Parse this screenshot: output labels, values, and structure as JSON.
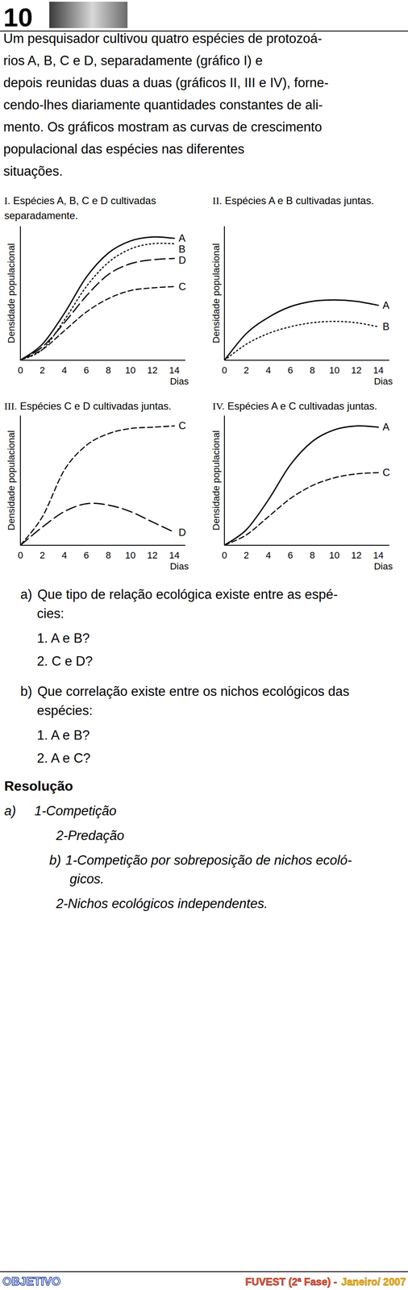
{
  "header": {
    "number": "10"
  },
  "question": {
    "lines": [
      "Um pesquisador cultivou quatro espécies de protozoá-",
      "rios A, B, C e D, separadamente (gráfico I) e",
      "depois reunidas duas a duas (gráficos II, III e IV), forne-",
      "cendo-lhes diariamente quantidades constantes de ali-",
      "mento. Os gráficos mostram as curvas de crescimento",
      "populacional das espécies nas diferentes",
      "situações."
    ]
  },
  "chart_data": [
    {
      "type": "line",
      "title": "I.",
      "subtitle": "Espécies A, B, C e D cultivadas separadamente.",
      "x_label": "Dias",
      "y_label": "Densidade populacional",
      "x": [
        0,
        2,
        4,
        6,
        8,
        10,
        12,
        14
      ],
      "xlim": [
        0,
        15
      ],
      "ylim": [
        0,
        100
      ],
      "xticks": [
        0,
        2,
        4,
        6,
        8,
        10,
        12,
        14
      ],
      "tick_labels": "x",
      "series": [
        {
          "name": "A",
          "color": "#000000",
          "line_style": "solid",
          "values": [
            0,
            12,
            35,
            62,
            80,
            89,
            92,
            91
          ]
        },
        {
          "name": "B",
          "color": "#000000",
          "line_style": "dotted",
          "values": [
            0,
            8,
            30,
            55,
            73,
            83,
            87,
            87
          ]
        },
        {
          "name": "D",
          "color": "#000000",
          "line_style": "longdash",
          "values": [
            0,
            10,
            28,
            48,
            64,
            72,
            75,
            76
          ]
        },
        {
          "name": "C",
          "color": "#000000",
          "line_style": "dashed",
          "values": [
            0,
            8,
            22,
            36,
            46,
            52,
            54,
            55
          ]
        }
      ]
    },
    {
      "type": "line",
      "title": "II.",
      "subtitle": "Espécies A e B cultivadas juntas.",
      "x_label": "Dias",
      "y_label": "Densidade populacional",
      "x": [
        0,
        2,
        4,
        6,
        8,
        10,
        12,
        14
      ],
      "xlim": [
        0,
        15
      ],
      "ylim": [
        0,
        100
      ],
      "xticks": [
        0,
        2,
        4,
        6,
        8,
        10,
        12,
        14
      ],
      "tick_labels": "x",
      "series": [
        {
          "name": "A",
          "color": "#000000",
          "line_style": "solid",
          "values": [
            0,
            20,
            32,
            40,
            44,
            45,
            44,
            41
          ]
        },
        {
          "name": "B",
          "color": "#000000",
          "line_style": "dotted",
          "values": [
            0,
            12,
            20,
            25,
            28,
            29,
            28,
            25
          ]
        }
      ]
    },
    {
      "type": "line",
      "title": "III.",
      "subtitle": "Espécies C e D cultivadas juntas.",
      "x_label": "Dias",
      "y_label": "Densidade populacional",
      "x": [
        0,
        2,
        4,
        6,
        8,
        10,
        12,
        14
      ],
      "xlim": [
        0,
        15
      ],
      "ylim": [
        0,
        100
      ],
      "xticks": [
        0,
        2,
        4,
        6,
        8,
        10,
        12,
        14
      ],
      "tick_labels": "x",
      "series": [
        {
          "name": "C",
          "color": "#000000",
          "line_style": "dashed",
          "values": [
            0,
            22,
            58,
            77,
            86,
            90,
            91,
            92
          ]
        },
        {
          "name": "D",
          "color": "#000000",
          "line_style": "longdash",
          "values": [
            0,
            14,
            26,
            32,
            31,
            26,
            18,
            10
          ]
        }
      ]
    },
    {
      "type": "line",
      "title": "IV.",
      "subtitle": "Espécies A e C cultivadas juntas.",
      "x_label": "Dias",
      "y_label": "Densidade populacional",
      "x": [
        0,
        2,
        4,
        6,
        8,
        10,
        12,
        14
      ],
      "xlim": [
        0,
        15
      ],
      "ylim": [
        0,
        100
      ],
      "xticks": [
        0,
        2,
        4,
        6,
        8,
        10,
        12,
        14
      ],
      "tick_labels": "x",
      "series": [
        {
          "name": "A",
          "color": "#000000",
          "line_style": "solid",
          "values": [
            0,
            12,
            35,
            62,
            80,
            89,
            92,
            91
          ]
        },
        {
          "name": "C",
          "color": "#000000",
          "line_style": "dashed",
          "values": [
            0,
            8,
            22,
            36,
            46,
            52,
            55,
            56
          ]
        }
      ]
    }
  ],
  "questions": {
    "a": {
      "label": "a)",
      "lines": [
        "Que tipo de relação ecológica existe entre as espé-",
        "cies:"
      ],
      "items": [
        "1. A e B?",
        "2. C e D?"
      ]
    },
    "b": {
      "label": "b)",
      "lines": [
        "Que correlação existe entre os nichos ecológicos das",
        "espécies:"
      ],
      "items": [
        "1. A e B?",
        "2. A e C?"
      ]
    }
  },
  "resolution": {
    "title": "Resolução",
    "a": {
      "label": "a)",
      "lines": [
        "1-Competição",
        "2-Predação"
      ]
    },
    "b": {
      "label": "b)",
      "lines": [
        "1-Competição por sobreposição de nichos ecoló-",
        "gicos.",
        "2-Nichos ecológicos independentes."
      ]
    }
  },
  "footer": {
    "left": "OBJETIVO",
    "exam": "FUVEST (2ª Fase) -",
    "date": "Janeiro/ 2007"
  }
}
